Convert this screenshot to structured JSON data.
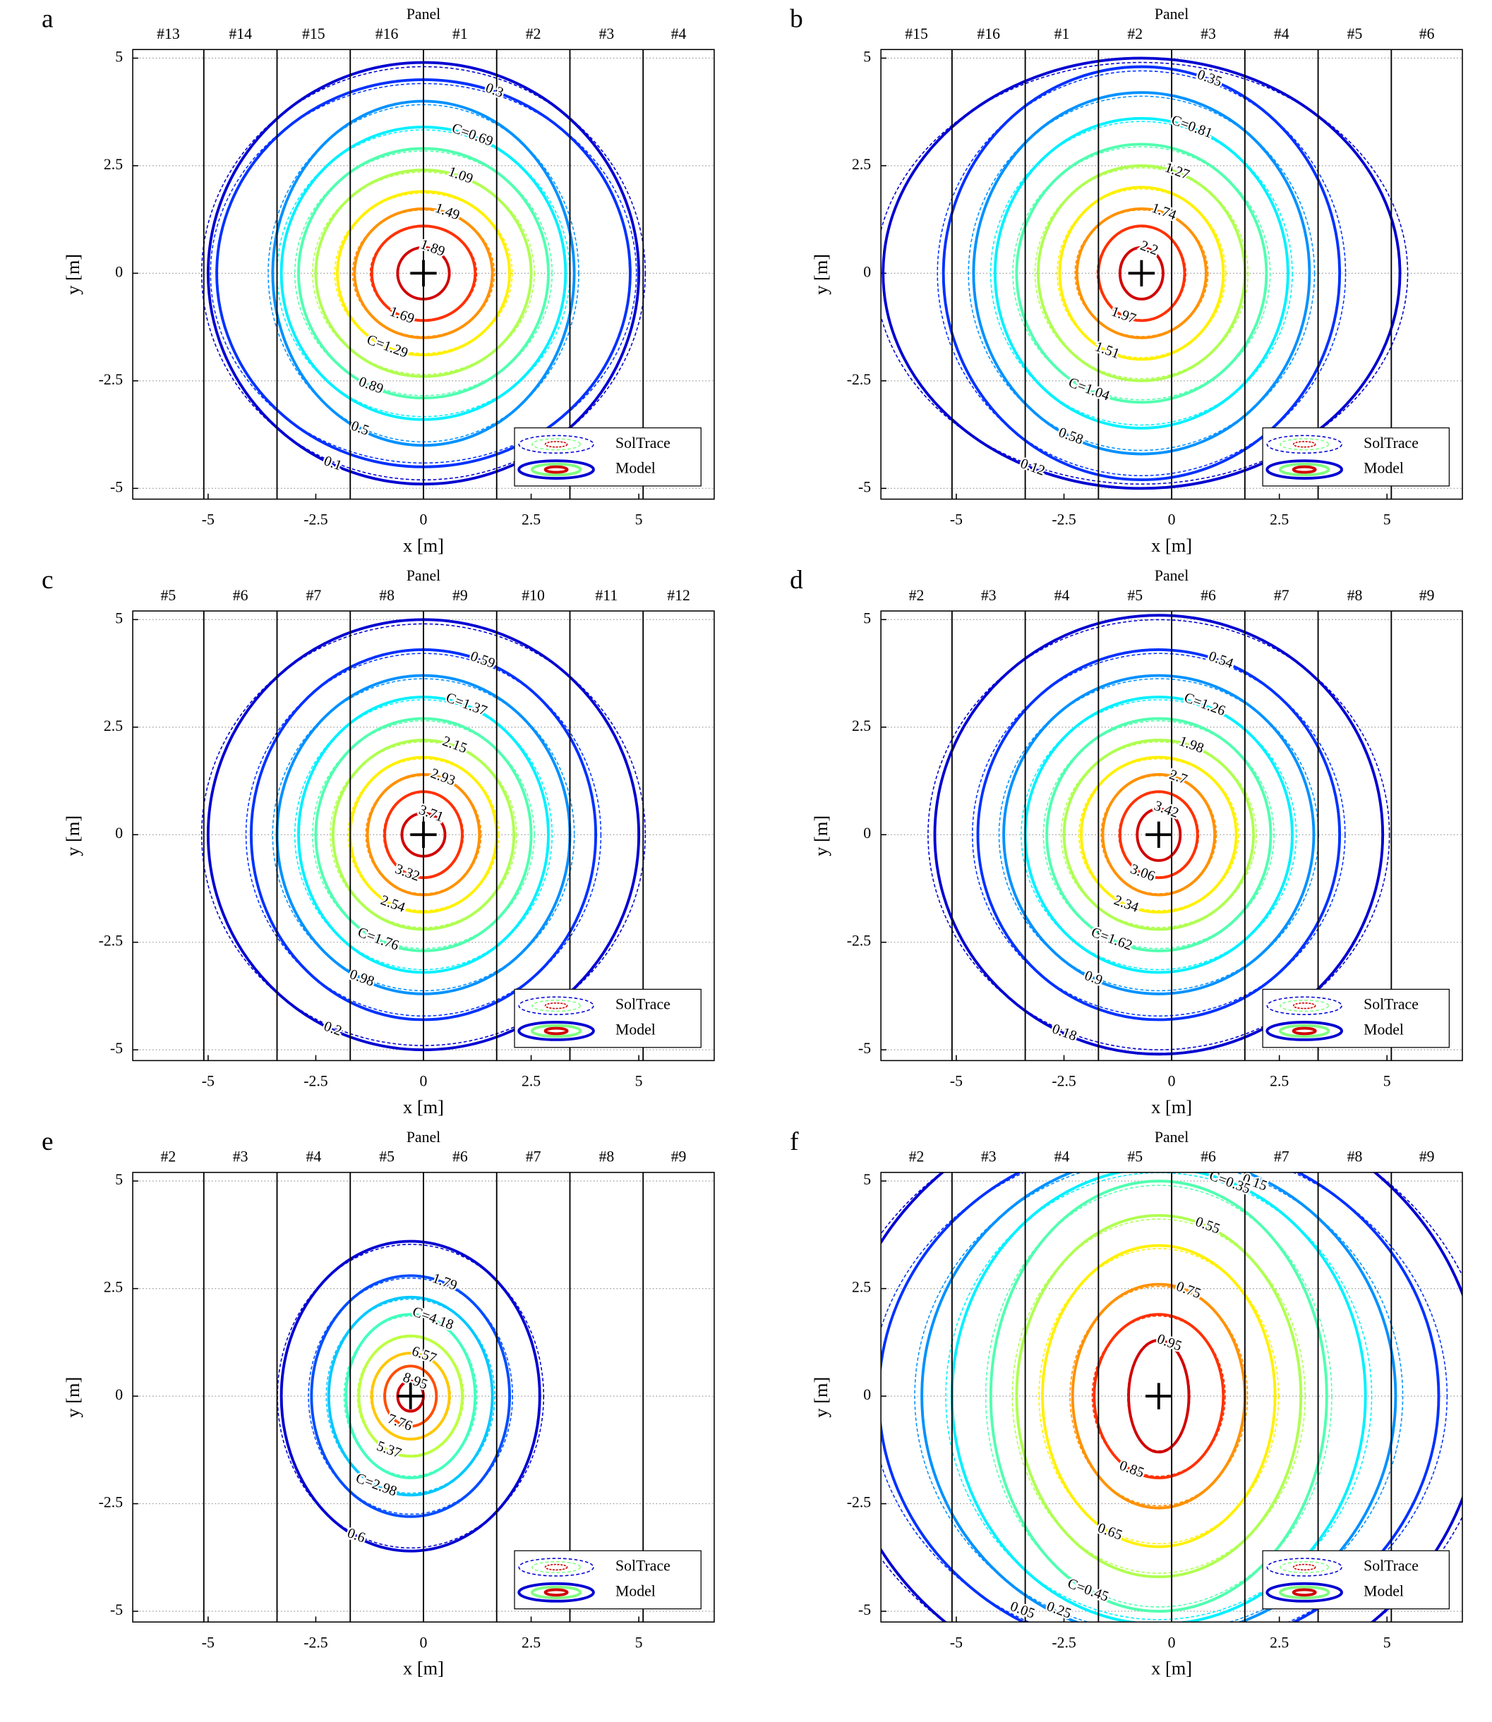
{
  "chart_data": [
    {
      "type": "contour",
      "label": "a",
      "top_axis_label": "Panel",
      "xlabel": "x [m]",
      "ylabel": "y [m]",
      "panels": [
        "#13",
        "#14",
        "#15",
        "#16",
        "#1",
        "#2",
        "#3",
        "#4"
      ],
      "panel_edges": [
        -5.1,
        -3.4,
        -1.7,
        0,
        1.7,
        3.4,
        5.1
      ],
      "xlim": [
        -6.75,
        6.75
      ],
      "xticks": [
        -5,
        -2.5,
        0,
        2.5,
        5
      ],
      "ylim": [
        -5.25,
        5.2
      ],
      "yticks": [
        -5,
        -2.5,
        0,
        2.5,
        5
      ],
      "grid": true,
      "center": [
        0,
        0
      ],
      "levels": [
        0.1,
        0.3,
        0.5,
        0.69,
        0.89,
        1.09,
        1.29,
        1.49,
        1.69,
        1.89
      ],
      "value_labels": [
        "0.1",
        "0.3",
        "0.5",
        "C=0.69",
        "0.89",
        "1.09",
        "C=1.29",
        "1.49",
        "1.69",
        "1.89"
      ],
      "rx": [
        5.0,
        4.8,
        3.5,
        3.3,
        2.9,
        2.5,
        2.0,
        1.6,
        1.2,
        0.6
      ],
      "ry": [
        4.9,
        4.5,
        4.0,
        3.4,
        2.9,
        2.4,
        1.9,
        1.5,
        1.1,
        0.6
      ],
      "legend": [
        "SolTrace",
        "Model"
      ],
      "legend_position": "lower right"
    },
    {
      "type": "contour",
      "label": "b",
      "top_axis_label": "Panel",
      "xlabel": "x [m]",
      "ylabel": "y [m]",
      "panels": [
        "#15",
        "#16",
        "#1",
        "#2",
        "#3",
        "#4",
        "#5",
        "#6"
      ],
      "panel_edges": [
        -5.1,
        -3.4,
        -1.7,
        0,
        1.7,
        3.4,
        5.1
      ],
      "xlim": [
        -6.75,
        6.75
      ],
      "xticks": [
        -5,
        -2.5,
        0,
        2.5,
        5
      ],
      "ylim": [
        -5.25,
        5.2
      ],
      "yticks": [
        -5,
        -2.5,
        0,
        2.5,
        5
      ],
      "grid": true,
      "center": [
        -0.7,
        0
      ],
      "levels": [
        0.12,
        0.35,
        0.58,
        0.81,
        1.04,
        1.27,
        1.51,
        1.74,
        1.97,
        2.2
      ],
      "value_labels": [
        "0.12",
        "0.35",
        "0.58",
        "C=0.81",
        "C=1.04",
        "1.27",
        "1.51",
        "1.74",
        "1.97",
        "2.2"
      ],
      "rx": [
        6.0,
        4.6,
        3.9,
        3.4,
        2.9,
        2.4,
        1.9,
        1.5,
        1.0,
        0.5
      ],
      "ry": [
        5.0,
        4.8,
        4.2,
        3.6,
        3.0,
        2.5,
        2.0,
        1.5,
        1.1,
        0.6
      ],
      "legend": [
        "SolTrace",
        "Model"
      ],
      "legend_position": "lower right"
    },
    {
      "type": "contour",
      "label": "c",
      "top_axis_label": "Panel",
      "xlabel": "x [m]",
      "ylabel": "y [m]",
      "panels": [
        "#5",
        "#6",
        "#7",
        "#8",
        "#9",
        "#10",
        "#11",
        "#12"
      ],
      "panel_edges": [
        -5.1,
        -3.4,
        -1.7,
        0,
        1.7,
        3.4,
        5.1
      ],
      "xlim": [
        -6.75,
        6.75
      ],
      "xticks": [
        -5,
        -2.5,
        0,
        2.5,
        5
      ],
      "ylim": [
        -5.25,
        5.2
      ],
      "yticks": [
        -5,
        -2.5,
        0,
        2.5,
        5
      ],
      "grid": true,
      "center": [
        0,
        0
      ],
      "levels": [
        0.2,
        0.59,
        0.98,
        1.37,
        1.76,
        2.15,
        2.54,
        2.93,
        3.32,
        3.71
      ],
      "value_labels": [
        "0.2",
        "0.59",
        "0.98",
        "C=1.37",
        "C=1.76",
        "2.15",
        "2.54",
        "2.93",
        "3.32",
        "3.71"
      ],
      "rx": [
        5.0,
        4.0,
        3.4,
        2.9,
        2.5,
        2.1,
        1.7,
        1.3,
        0.9,
        0.5
      ],
      "ry": [
        5.0,
        4.3,
        3.7,
        3.2,
        2.7,
        2.2,
        1.8,
        1.4,
        1.0,
        0.5
      ],
      "legend": [
        "SolTrace",
        "Model"
      ],
      "legend_position": "lower right"
    },
    {
      "type": "contour",
      "label": "d",
      "top_axis_label": "Panel",
      "xlabel": "x [m]",
      "ylabel": "y [m]",
      "panels": [
        "#2",
        "#3",
        "#4",
        "#5",
        "#6",
        "#7",
        "#8",
        "#9"
      ],
      "panel_edges": [
        -5.1,
        -3.4,
        -1.7,
        0,
        1.7,
        3.4,
        5.1
      ],
      "xlim": [
        -6.75,
        6.75
      ],
      "xticks": [
        -5,
        -2.5,
        0,
        2.5,
        5
      ],
      "ylim": [
        -5.25,
        5.2
      ],
      "yticks": [
        -5,
        -2.5,
        0,
        2.5,
        5
      ],
      "grid": true,
      "center": [
        -0.3,
        0
      ],
      "levels": [
        0.18,
        0.54,
        0.9,
        1.26,
        1.62,
        1.98,
        2.34,
        2.7,
        3.06,
        3.42
      ],
      "value_labels": [
        "0.18",
        "0.54",
        "0.9",
        "C=1.26",
        "C=1.62",
        "1.98",
        "2.34",
        "2.7",
        "3.06",
        "3.42"
      ],
      "rx": [
        5.2,
        4.2,
        3.6,
        3.1,
        2.6,
        2.2,
        1.8,
        1.3,
        0.9,
        0.5
      ],
      "ry": [
        5.1,
        4.3,
        3.7,
        3.2,
        2.7,
        2.2,
        1.8,
        1.4,
        1.0,
        0.6
      ],
      "legend": [
        "SolTrace",
        "Model"
      ],
      "legend_position": "lower right"
    },
    {
      "type": "contour",
      "label": "e",
      "top_axis_label": "Panel",
      "xlabel": "x [m]",
      "ylabel": "y [m]",
      "panels": [
        "#2",
        "#3",
        "#4",
        "#5",
        "#6",
        "#7",
        "#8",
        "#9"
      ],
      "panel_edges": [
        -5.1,
        -3.4,
        -1.7,
        0,
        1.7,
        3.4,
        5.1
      ],
      "xlim": [
        -6.75,
        6.75
      ],
      "xticks": [
        -5,
        -2.5,
        0,
        2.5,
        5
      ],
      "ylim": [
        -5.25,
        5.2
      ],
      "yticks": [
        -5,
        -2.5,
        0,
        2.5,
        5
      ],
      "grid": true,
      "center": [
        -0.3,
        0
      ],
      "levels": [
        0.6,
        1.79,
        2.98,
        4.18,
        5.37,
        6.57,
        7.76,
        8.95
      ],
      "value_labels": [
        "0.6",
        "1.79",
        "C=2.98",
        "C=4.18",
        "5.37",
        "6.57",
        "7.76",
        "8.95"
      ],
      "rx": [
        3.0,
        2.3,
        1.9,
        1.5,
        1.2,
        0.9,
        0.6,
        0.3
      ],
      "ry": [
        3.6,
        2.8,
        2.3,
        1.9,
        1.4,
        1.0,
        0.7,
        0.35
      ],
      "legend": [
        "SolTrace",
        "Model"
      ],
      "legend_position": "lower right"
    },
    {
      "type": "contour",
      "label": "f",
      "top_axis_label": "Panel",
      "xlabel": "x [m]",
      "ylabel": "y [m]",
      "panels": [
        "#2",
        "#3",
        "#4",
        "#5",
        "#6",
        "#7",
        "#8",
        "#9"
      ],
      "panel_edges": [
        -5.1,
        -3.4,
        -1.7,
        0,
        1.7,
        3.4,
        5.1
      ],
      "xlim": [
        -6.75,
        6.75
      ],
      "xticks": [
        -5,
        -2.5,
        0,
        2.5,
        5
      ],
      "ylim": [
        -5.25,
        5.2
      ],
      "yticks": [
        -5,
        -2.5,
        0,
        2.5,
        5
      ],
      "grid": true,
      "center": [
        -0.3,
        0
      ],
      "levels": [
        0.05,
        0.15,
        0.25,
        0.35,
        0.45,
        0.55,
        0.65,
        0.75,
        0.85,
        0.95
      ],
      "value_labels": [
        "0.05",
        "0.15",
        "0.25",
        "C=0.35",
        "C=0.45",
        "0.55",
        "0.65",
        "0.75",
        "0.85",
        "0.95"
      ],
      "rx": [
        7.5,
        6.5,
        5.5,
        4.8,
        3.9,
        3.3,
        2.7,
        2.0,
        1.5,
        0.7
      ],
      "ry": [
        7.0,
        6.0,
        5.6,
        5.3,
        5.0,
        4.2,
        3.5,
        2.6,
        1.9,
        1.3
      ],
      "legend": [
        "SolTrace",
        "Model"
      ],
      "legend_position": "lower right"
    }
  ]
}
